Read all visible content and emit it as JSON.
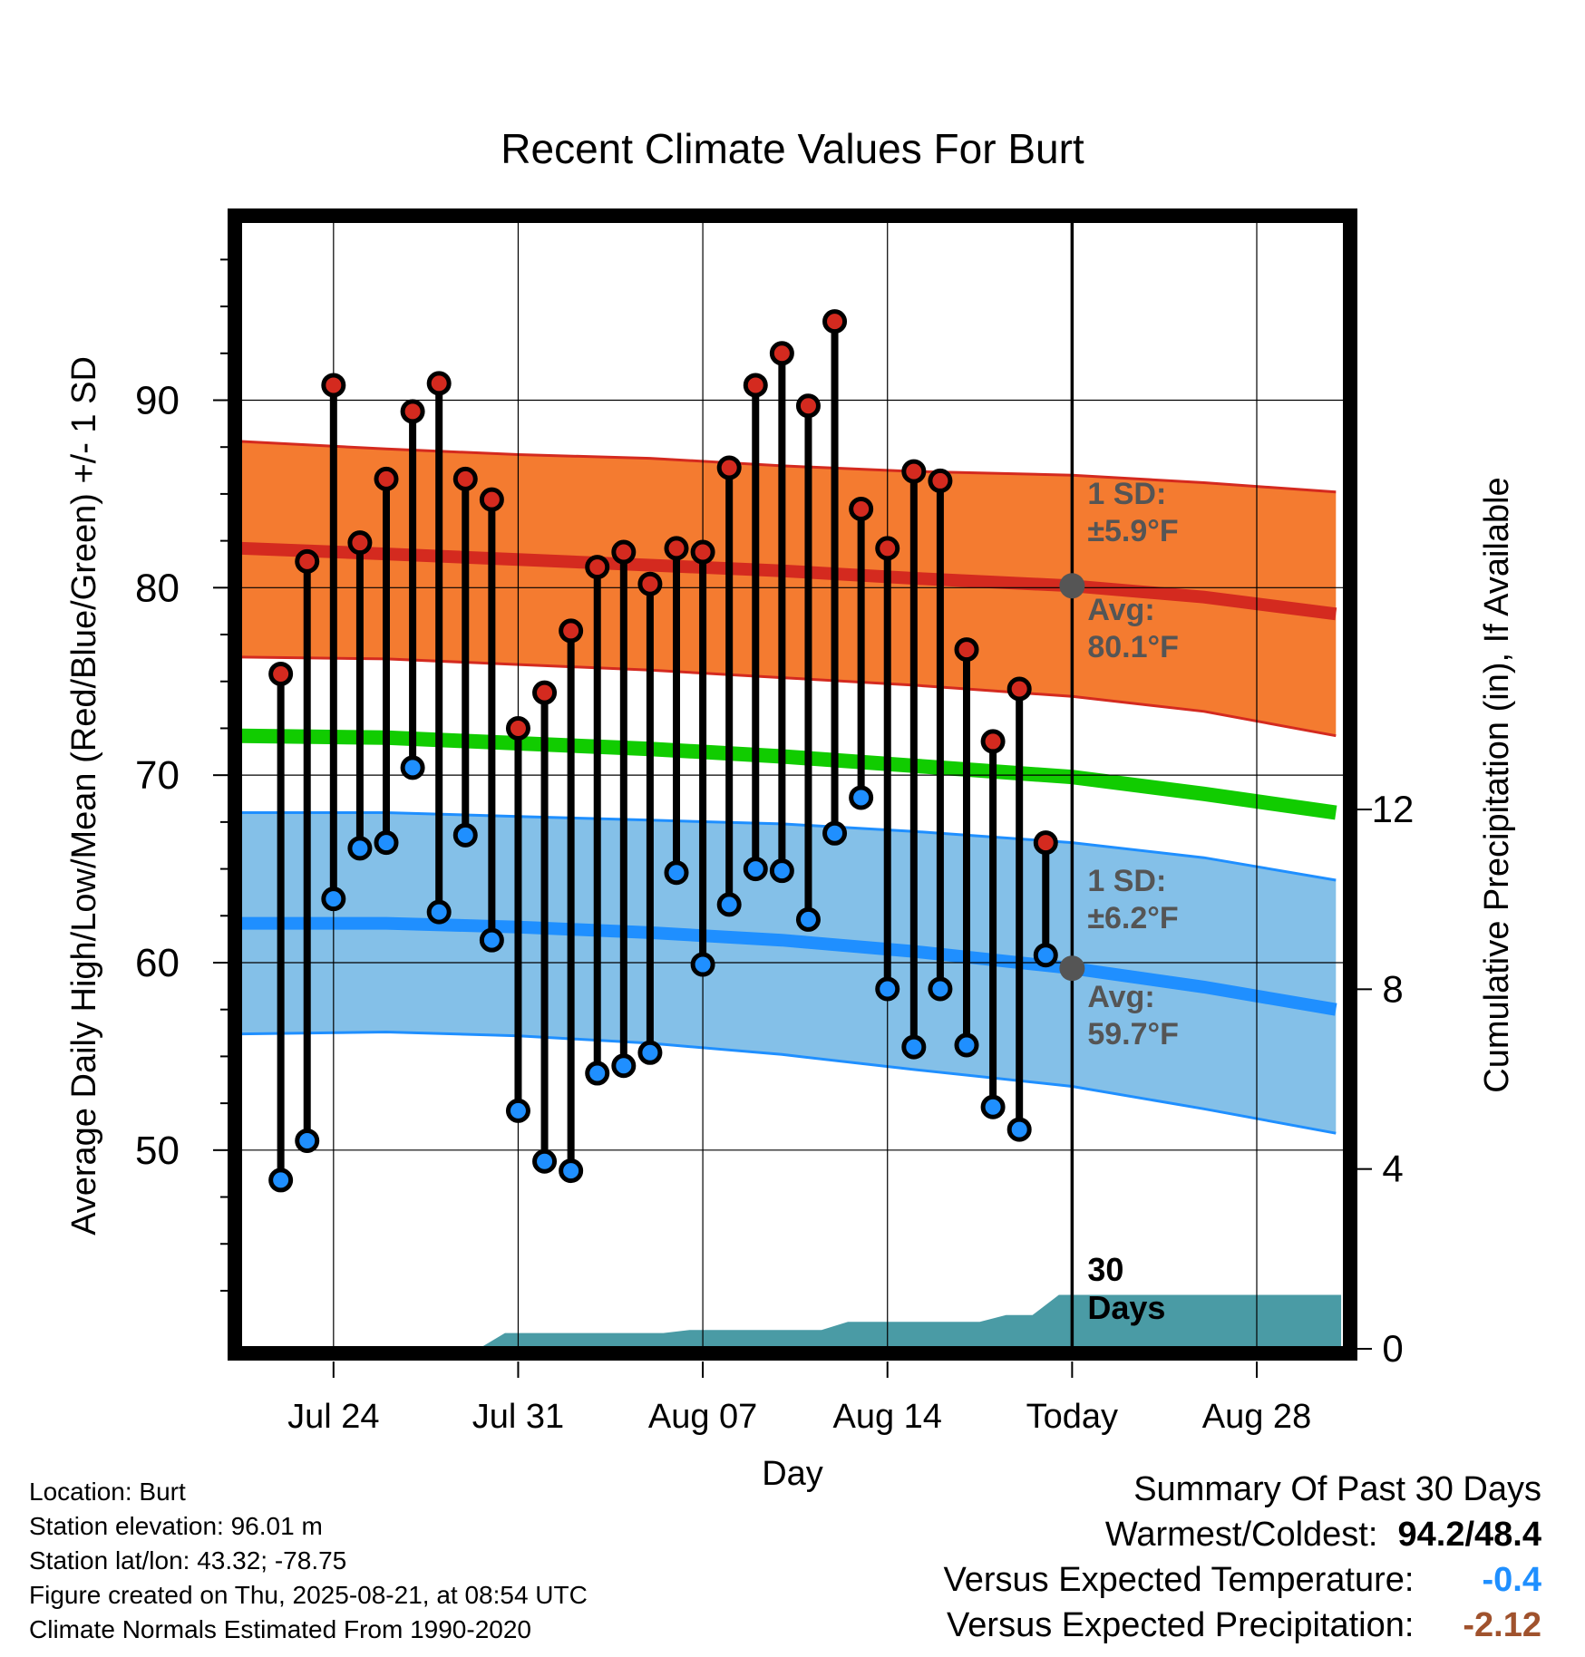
{
  "chart_data": {
    "type": "line",
    "title": "Recent Climate Values For Burt",
    "xlabel": "Day",
    "ylabel_left": "Average Daily High/Low/Mean (Red/Blue/Green) +/- 1 SD",
    "ylabel_right": "Cumulative Precipitation (in), If Available",
    "x_ticks": [
      {
        "day": 3,
        "label": "Jul 24"
      },
      {
        "day": 10,
        "label": "Jul 31"
      },
      {
        "day": 17,
        "label": "Aug 07"
      },
      {
        "day": 24,
        "label": "Aug 14"
      },
      {
        "day": 31,
        "label": "Today"
      },
      {
        "day": 38,
        "label": "Aug 28"
      }
    ],
    "xlim": [
      -0.5,
      41.3
    ],
    "ylim": [
      39.5,
      99.5
    ],
    "y_ticks": [
      50,
      60,
      70,
      80,
      90
    ],
    "y2_ticks": [
      0,
      4,
      8,
      12
    ],
    "y2_range": [
      0,
      12
    ],
    "today_day": 31,
    "grid": true,
    "days_label": "30 Days",
    "colors": {
      "high_band": "#f47b30",
      "high_line": "#d42a1f",
      "low_band": "#84c0e8",
      "low_line": "#1f8fff",
      "mean_line": "#11cc00",
      "precip": "#4a9ba5",
      "high_marker": "#d42a1f",
      "low_marker": "#1f8fff",
      "today_marker": "#555555",
      "annotation": "#555555"
    },
    "normal_high": {
      "days": [
        -0.5,
        5,
        10,
        15,
        20,
        25,
        31,
        36,
        41
      ],
      "avg": [
        82.1,
        81.8,
        81.5,
        81.2,
        80.9,
        80.5,
        80.1,
        79.5,
        78.6
      ],
      "upper": [
        87.8,
        87.4,
        87.1,
        86.9,
        86.5,
        86.2,
        86.0,
        85.6,
        85.1
      ],
      "lower": [
        76.3,
        76.2,
        75.9,
        75.6,
        75.2,
        74.8,
        74.2,
        73.4,
        72.1
      ]
    },
    "normal_low": {
      "days": [
        -0.5,
        5,
        10,
        15,
        20,
        25,
        31,
        36,
        41
      ],
      "avg": [
        62.1,
        62.1,
        61.9,
        61.6,
        61.2,
        60.6,
        59.7,
        58.7,
        57.5
      ],
      "upper": [
        68.0,
        68.0,
        67.8,
        67.6,
        67.4,
        67.0,
        66.4,
        65.6,
        64.4
      ],
      "lower": [
        56.2,
        56.3,
        56.1,
        55.7,
        55.1,
        54.3,
        53.4,
        52.2,
        50.9
      ]
    },
    "normal_mean": {
      "days": [
        -0.5,
        5,
        10,
        15,
        20,
        25,
        31,
        36,
        41
      ],
      "values": [
        72.1,
        72.0,
        71.7,
        71.4,
        71.0,
        70.5,
        69.9,
        69.0,
        68.0
      ]
    },
    "daily": {
      "days": [
        1,
        2,
        3,
        4,
        5,
        6,
        7,
        8,
        9,
        10,
        11,
        12,
        13,
        14,
        15,
        16,
        17,
        18,
        19,
        20,
        21,
        22,
        23,
        24,
        25,
        26,
        27,
        28,
        29,
        30
      ],
      "high": [
        75.4,
        81.4,
        90.8,
        82.4,
        85.8,
        89.4,
        90.9,
        85.8,
        84.7,
        72.5,
        74.4,
        77.7,
        81.1,
        81.9,
        80.2,
        82.1,
        81.9,
        86.4,
        90.8,
        92.5,
        89.7,
        94.2,
        84.2,
        82.1,
        86.2,
        85.7,
        76.7,
        71.8,
        74.6,
        66.4
      ],
      "low": [
        48.4,
        50.5,
        63.4,
        66.1,
        66.4,
        70.4,
        62.7,
        66.8,
        61.2,
        52.1,
        49.4,
        48.9,
        54.1,
        54.5,
        55.2,
        64.8,
        59.9,
        63.1,
        65.0,
        64.9,
        62.3,
        66.9,
        68.8,
        58.6,
        55.5,
        58.6,
        55.6,
        52.3,
        51.1,
        60.4
      ]
    },
    "precip": {
      "days": [
        -0.5,
        8.5,
        9.5,
        15.5,
        16.5,
        21.5,
        22.5,
        27.5,
        28.5,
        29.5,
        30.5,
        31.5,
        41.2
      ],
      "values": [
        0,
        0,
        0.35,
        0.35,
        0.42,
        0.42,
        0.6,
        0.6,
        0.75,
        0.75,
        1.2,
        1.2,
        1.2
      ]
    },
    "annotations": {
      "high_sd_label": "1 SD:",
      "high_sd_value": "±5.9°F",
      "high_avg_label": "Avg:",
      "high_avg_value": "80.1°F",
      "low_sd_label": "1 SD:",
      "low_sd_value": "±6.2°F",
      "low_avg_label": "Avg:",
      "low_avg_value": "59.7°F"
    }
  },
  "station_info": {
    "location": "Location: Burt",
    "elevation": "Station elevation: 96.01 m",
    "latlon": "Station lat/lon: 43.32; -78.75",
    "created": "Figure created on Thu, 2025-08-21, at 08:54 UTC",
    "normals": "Climate Normals Estimated From 1990-2020"
  },
  "summary": {
    "title": "Summary Of Past 30 Days",
    "warmest_coldest_label": "Warmest/Coldest:",
    "warmest_coldest_value": "94.2/48.4",
    "temp_label": "Versus Expected Temperature:",
    "temp_value": "-0.4",
    "temp_color": "#1f8fff",
    "precip_label": "Versus Expected Precipitation:",
    "precip_value": "-2.12",
    "precip_color": "#a0522d"
  }
}
